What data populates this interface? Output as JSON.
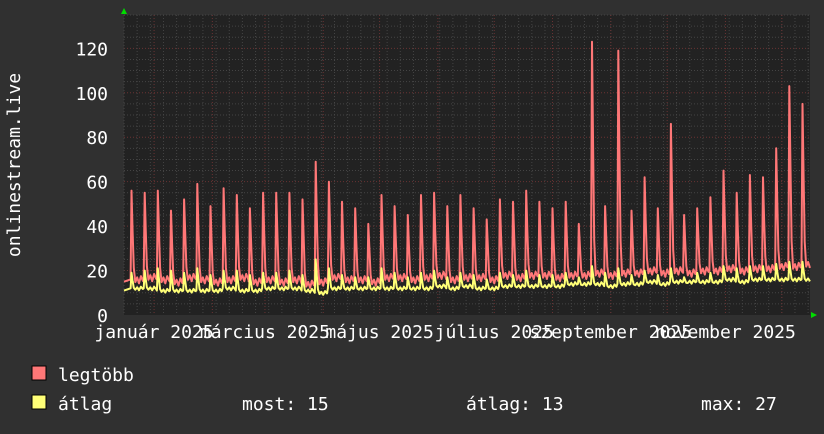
{
  "chart_data": {
    "type": "line",
    "ylabel": "onlinestream.live",
    "ylim": [
      0,
      135
    ],
    "yticks": [
      0,
      20,
      40,
      60,
      80,
      100,
      120
    ],
    "xlim": [
      "2024-12-16",
      "2025-12-16"
    ],
    "xticks": [
      {
        "date": "2025-01-01",
        "label": "január 2025"
      },
      {
        "date": "2025-03-01",
        "label": "március 2025"
      },
      {
        "date": "2025-05-01",
        "label": "május 2025"
      },
      {
        "date": "2025-07-01",
        "label": "július 2025"
      },
      {
        "date": "2025-09-01",
        "label": "szeptember 2025"
      },
      {
        "date": "2025-11-01",
        "label": "november 2025"
      }
    ],
    "grid": true,
    "period": "weekly",
    "x": [
      "2024-12-20",
      "2024-12-27",
      "2025-01-03",
      "2025-01-10",
      "2025-01-17",
      "2025-01-24",
      "2025-01-31",
      "2025-02-07",
      "2025-02-14",
      "2025-02-21",
      "2025-02-28",
      "2025-03-07",
      "2025-03-14",
      "2025-03-21",
      "2025-03-28",
      "2025-04-04",
      "2025-04-11",
      "2025-04-18",
      "2025-04-25",
      "2025-05-02",
      "2025-05-09",
      "2025-05-16",
      "2025-05-23",
      "2025-05-30",
      "2025-06-06",
      "2025-06-13",
      "2025-06-20",
      "2025-06-27",
      "2025-07-04",
      "2025-07-11",
      "2025-07-18",
      "2025-07-25",
      "2025-08-01",
      "2025-08-08",
      "2025-08-15",
      "2025-08-22",
      "2025-08-29",
      "2025-09-05",
      "2025-09-12",
      "2025-09-19",
      "2025-09-26",
      "2025-10-03",
      "2025-10-10",
      "2025-10-17",
      "2025-10-24",
      "2025-10-31",
      "2025-11-07",
      "2025-11-14",
      "2025-11-21",
      "2025-11-28",
      "2025-12-05",
      "2025-12-12"
    ],
    "series": [
      {
        "name": "legtöbb",
        "color": "#ff7777",
        "weekly_peak": [
          56,
          55,
          56,
          47,
          52,
          59,
          49,
          57,
          54,
          48,
          55,
          55,
          55,
          52,
          69,
          60,
          51,
          48,
          41,
          54,
          49,
          45,
          54,
          55,
          49,
          54,
          48,
          43,
          52,
          51,
          56,
          51,
          48,
          51,
          41,
          123,
          49,
          119,
          47,
          62,
          48,
          86,
          45,
          48,
          53,
          65,
          55,
          63,
          62,
          75,
          103,
          95
        ],
        "weekly_low": [
          15,
          16,
          15,
          14,
          16,
          15,
          14,
          15,
          16,
          14,
          15,
          14,
          15,
          13,
          14,
          16,
          15,
          15,
          14,
          16,
          16,
          15,
          16,
          17,
          15,
          16,
          16,
          15,
          17,
          16,
          17,
          17,
          16,
          17,
          17,
          18,
          17,
          18,
          18,
          19,
          18,
          19,
          18,
          19,
          19,
          20,
          19,
          20,
          20,
          21,
          21,
          22
        ]
      },
      {
        "name": "átlag",
        "color": "#ffff77",
        "weekly_peak": [
          19,
          20,
          21,
          20,
          19,
          21,
          18,
          20,
          20,
          18,
          19,
          19,
          20,
          18,
          25,
          21,
          18,
          17,
          17,
          21,
          19,
          17,
          19,
          20,
          17,
          19,
          18,
          16,
          19,
          18,
          20,
          18,
          18,
          19,
          17,
          22,
          19,
          21,
          18,
          20,
          18,
          21,
          17,
          19,
          19,
          22,
          21,
          22,
          22,
          23,
          24,
          24
        ],
        "weekly_low": [
          11,
          11,
          10,
          10,
          10,
          10,
          10,
          11,
          10,
          10,
          11,
          11,
          11,
          10,
          9,
          11,
          11,
          11,
          11,
          11,
          11,
          11,
          11,
          12,
          11,
          12,
          11,
          11,
          12,
          12,
          12,
          12,
          12,
          13,
          13,
          13,
          12,
          13,
          13,
          14,
          13,
          14,
          14,
          14,
          14,
          15,
          14,
          15,
          15,
          15,
          15,
          15
        ]
      }
    ]
  },
  "legend": {
    "max_label": "legtöbb",
    "avg_label": "átlag",
    "now_label": "most: 15",
    "mean_label": "átlag: 13",
    "max_value_label": "max: 27"
  }
}
